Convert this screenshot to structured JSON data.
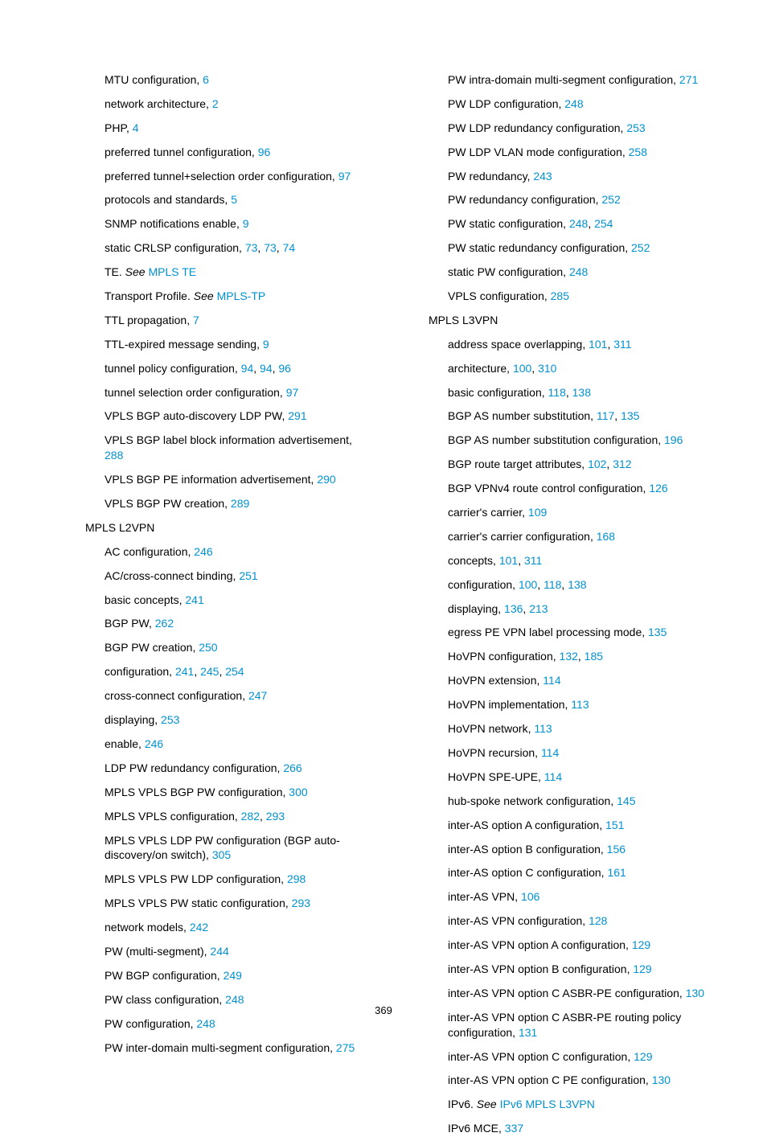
{
  "link_color": "#0091d2",
  "page_number": "369",
  "columns": [
    [
      {
        "lvl": 2,
        "parts": [
          {
            "t": "MTU configuration, "
          },
          {
            "t": "6",
            "p": 1
          }
        ]
      },
      {
        "lvl": 2,
        "parts": [
          {
            "t": "network architecture, "
          },
          {
            "t": "2",
            "p": 1
          }
        ]
      },
      {
        "lvl": 2,
        "parts": [
          {
            "t": "PHP, "
          },
          {
            "t": "4",
            "p": 1
          }
        ]
      },
      {
        "lvl": 2,
        "parts": [
          {
            "t": "preferred tunnel configuration, "
          },
          {
            "t": "96",
            "p": 1
          }
        ]
      },
      {
        "lvl": 2,
        "parts": [
          {
            "t": "preferred tunnel+selection order configuration, "
          },
          {
            "t": "97",
            "p": 1
          }
        ]
      },
      {
        "lvl": 2,
        "parts": [
          {
            "t": "protocols and standards, "
          },
          {
            "t": "5",
            "p": 1
          }
        ]
      },
      {
        "lvl": 2,
        "parts": [
          {
            "t": "SNMP notifications enable, "
          },
          {
            "t": "9",
            "p": 1
          }
        ]
      },
      {
        "lvl": 2,
        "parts": [
          {
            "t": "static CRLSP configuration, "
          },
          {
            "t": "73",
            "p": 1
          },
          {
            "t": ", "
          },
          {
            "t": "73",
            "p": 1
          },
          {
            "t": ", "
          },
          {
            "t": "74",
            "p": 1
          }
        ]
      },
      {
        "lvl": 2,
        "parts": [
          {
            "t": "TE. "
          },
          {
            "t": "See",
            "i": 1
          },
          {
            "t": " "
          },
          {
            "t": "MPLS TE",
            "s": 1
          }
        ]
      },
      {
        "lvl": 2,
        "parts": [
          {
            "t": "Transport Profile. "
          },
          {
            "t": "See",
            "i": 1
          },
          {
            "t": " "
          },
          {
            "t": "MPLS-TP",
            "s": 1
          }
        ]
      },
      {
        "lvl": 2,
        "parts": [
          {
            "t": "TTL propagation, "
          },
          {
            "t": "7",
            "p": 1
          }
        ]
      },
      {
        "lvl": 2,
        "parts": [
          {
            "t": "TTL-expired message sending, "
          },
          {
            "t": "9",
            "p": 1
          }
        ]
      },
      {
        "lvl": 2,
        "parts": [
          {
            "t": "tunnel policy configuration, "
          },
          {
            "t": "94",
            "p": 1
          },
          {
            "t": ", "
          },
          {
            "t": "94",
            "p": 1
          },
          {
            "t": ", "
          },
          {
            "t": "96",
            "p": 1
          }
        ]
      },
      {
        "lvl": 2,
        "parts": [
          {
            "t": "tunnel selection order configuration, "
          },
          {
            "t": "97",
            "p": 1
          }
        ]
      },
      {
        "lvl": 2,
        "parts": [
          {
            "t": "VPLS BGP auto-discovery LDP PW, "
          },
          {
            "t": "291",
            "p": 1
          }
        ]
      },
      {
        "lvl": 2,
        "parts": [
          {
            "t": "VPLS BGP label block information advertisement, "
          },
          {
            "t": "288",
            "p": 1
          }
        ]
      },
      {
        "lvl": 2,
        "parts": [
          {
            "t": "VPLS BGP PE information advertisement, "
          },
          {
            "t": "290",
            "p": 1
          }
        ]
      },
      {
        "lvl": 2,
        "parts": [
          {
            "t": "VPLS BGP PW creation, "
          },
          {
            "t": "289",
            "p": 1
          }
        ]
      },
      {
        "lvl": 1,
        "parts": [
          {
            "t": "MPLS L2VPN"
          }
        ]
      },
      {
        "lvl": 2,
        "parts": [
          {
            "t": "AC configuration, "
          },
          {
            "t": "246",
            "p": 1
          }
        ]
      },
      {
        "lvl": 2,
        "parts": [
          {
            "t": "AC/cross-connect binding, "
          },
          {
            "t": "251",
            "p": 1
          }
        ]
      },
      {
        "lvl": 2,
        "parts": [
          {
            "t": "basic concepts, "
          },
          {
            "t": "241",
            "p": 1
          }
        ]
      },
      {
        "lvl": 2,
        "parts": [
          {
            "t": "BGP PW, "
          },
          {
            "t": "262",
            "p": 1
          }
        ]
      },
      {
        "lvl": 2,
        "parts": [
          {
            "t": "BGP PW creation, "
          },
          {
            "t": "250",
            "p": 1
          }
        ]
      },
      {
        "lvl": 2,
        "parts": [
          {
            "t": "configuration, "
          },
          {
            "t": "241",
            "p": 1
          },
          {
            "t": ", "
          },
          {
            "t": "245",
            "p": 1
          },
          {
            "t": ", "
          },
          {
            "t": "254",
            "p": 1
          }
        ]
      },
      {
        "lvl": 2,
        "parts": [
          {
            "t": "cross-connect configuration, "
          },
          {
            "t": "247",
            "p": 1
          }
        ]
      },
      {
        "lvl": 2,
        "parts": [
          {
            "t": "displaying, "
          },
          {
            "t": "253",
            "p": 1
          }
        ]
      },
      {
        "lvl": 2,
        "parts": [
          {
            "t": "enable, "
          },
          {
            "t": "246",
            "p": 1
          }
        ]
      },
      {
        "lvl": 2,
        "parts": [
          {
            "t": "LDP PW redundancy configuration, "
          },
          {
            "t": "266",
            "p": 1
          }
        ]
      },
      {
        "lvl": 2,
        "parts": [
          {
            "t": "MPLS VPLS BGP PW configuration, "
          },
          {
            "t": "300",
            "p": 1
          }
        ]
      },
      {
        "lvl": 2,
        "parts": [
          {
            "t": "MPLS VPLS configuration, "
          },
          {
            "t": "282",
            "p": 1
          },
          {
            "t": ", "
          },
          {
            "t": "293",
            "p": 1
          }
        ]
      },
      {
        "lvl": 2,
        "parts": [
          {
            "t": "MPLS VPLS LDP PW configuration (BGP auto-discovery/on switch), "
          },
          {
            "t": "305",
            "p": 1
          }
        ]
      },
      {
        "lvl": 2,
        "parts": [
          {
            "t": "MPLS VPLS PW LDP configuration, "
          },
          {
            "t": "298",
            "p": 1
          }
        ]
      },
      {
        "lvl": 2,
        "parts": [
          {
            "t": "MPLS VPLS PW static configuration, "
          },
          {
            "t": "293",
            "p": 1
          }
        ]
      },
      {
        "lvl": 2,
        "parts": [
          {
            "t": "network models, "
          },
          {
            "t": "242",
            "p": 1
          }
        ]
      },
      {
        "lvl": 2,
        "parts": [
          {
            "t": "PW (multi-segment), "
          },
          {
            "t": "244",
            "p": 1
          }
        ]
      },
      {
        "lvl": 2,
        "parts": [
          {
            "t": "PW BGP configuration, "
          },
          {
            "t": "249",
            "p": 1
          }
        ]
      },
      {
        "lvl": 2,
        "parts": [
          {
            "t": "PW class configuration, "
          },
          {
            "t": "248",
            "p": 1
          }
        ]
      },
      {
        "lvl": 2,
        "parts": [
          {
            "t": "PW configuration, "
          },
          {
            "t": "248",
            "p": 1
          }
        ]
      },
      {
        "lvl": 2,
        "parts": [
          {
            "t": "PW inter-domain multi-segment configuration, "
          },
          {
            "t": "275",
            "p": 1
          }
        ]
      }
    ],
    [
      {
        "lvl": 2,
        "parts": [
          {
            "t": "PW intra-domain multi-segment configuration, "
          },
          {
            "t": "271",
            "p": 1
          }
        ]
      },
      {
        "lvl": 2,
        "parts": [
          {
            "t": "PW LDP configuration, "
          },
          {
            "t": "248",
            "p": 1
          }
        ]
      },
      {
        "lvl": 2,
        "parts": [
          {
            "t": "PW LDP redundancy configuration, "
          },
          {
            "t": "253",
            "p": 1
          }
        ]
      },
      {
        "lvl": 2,
        "parts": [
          {
            "t": "PW LDP VLAN mode configuration, "
          },
          {
            "t": "258",
            "p": 1
          }
        ]
      },
      {
        "lvl": 2,
        "parts": [
          {
            "t": "PW redundancy, "
          },
          {
            "t": "243",
            "p": 1
          }
        ]
      },
      {
        "lvl": 2,
        "parts": [
          {
            "t": "PW redundancy configuration, "
          },
          {
            "t": "252",
            "p": 1
          }
        ]
      },
      {
        "lvl": 2,
        "parts": [
          {
            "t": "PW static configuration, "
          },
          {
            "t": "248",
            "p": 1
          },
          {
            "t": ", "
          },
          {
            "t": "254",
            "p": 1
          }
        ]
      },
      {
        "lvl": 2,
        "parts": [
          {
            "t": "PW static redundancy configuration, "
          },
          {
            "t": "252",
            "p": 1
          }
        ]
      },
      {
        "lvl": 2,
        "parts": [
          {
            "t": "static PW configuration, "
          },
          {
            "t": "248",
            "p": 1
          }
        ]
      },
      {
        "lvl": 2,
        "parts": [
          {
            "t": "VPLS configuration, "
          },
          {
            "t": "285",
            "p": 1
          }
        ]
      },
      {
        "lvl": 1,
        "parts": [
          {
            "t": "MPLS L3VPN"
          }
        ]
      },
      {
        "lvl": 2,
        "parts": [
          {
            "t": "address space overlapping, "
          },
          {
            "t": "101",
            "p": 1
          },
          {
            "t": ", "
          },
          {
            "t": "311",
            "p": 1
          }
        ]
      },
      {
        "lvl": 2,
        "parts": [
          {
            "t": "architecture, "
          },
          {
            "t": "100",
            "p": 1
          },
          {
            "t": ", "
          },
          {
            "t": "310",
            "p": 1
          }
        ]
      },
      {
        "lvl": 2,
        "parts": [
          {
            "t": "basic configuration, "
          },
          {
            "t": "118",
            "p": 1
          },
          {
            "t": ", "
          },
          {
            "t": "138",
            "p": 1
          }
        ]
      },
      {
        "lvl": 2,
        "parts": [
          {
            "t": "BGP AS number substitution, "
          },
          {
            "t": "117",
            "p": 1
          },
          {
            "t": ", "
          },
          {
            "t": "135",
            "p": 1
          }
        ]
      },
      {
        "lvl": 2,
        "parts": [
          {
            "t": "BGP AS number substitution configuration, "
          },
          {
            "t": "196",
            "p": 1
          }
        ]
      },
      {
        "lvl": 2,
        "parts": [
          {
            "t": "BGP route target attributes, "
          },
          {
            "t": "102",
            "p": 1
          },
          {
            "t": ", "
          },
          {
            "t": "312",
            "p": 1
          }
        ]
      },
      {
        "lvl": 2,
        "parts": [
          {
            "t": "BGP VPNv4 route control configuration, "
          },
          {
            "t": "126",
            "p": 1
          }
        ]
      },
      {
        "lvl": 2,
        "parts": [
          {
            "t": "carrier's carrier, "
          },
          {
            "t": "109",
            "p": 1
          }
        ]
      },
      {
        "lvl": 2,
        "parts": [
          {
            "t": "carrier's carrier configuration, "
          },
          {
            "t": "168",
            "p": 1
          }
        ]
      },
      {
        "lvl": 2,
        "parts": [
          {
            "t": "concepts, "
          },
          {
            "t": "101",
            "p": 1
          },
          {
            "t": ", "
          },
          {
            "t": "311",
            "p": 1
          }
        ]
      },
      {
        "lvl": 2,
        "parts": [
          {
            "t": "configuration, "
          },
          {
            "t": "100",
            "p": 1
          },
          {
            "t": ", "
          },
          {
            "t": "118",
            "p": 1
          },
          {
            "t": ", "
          },
          {
            "t": "138",
            "p": 1
          }
        ]
      },
      {
        "lvl": 2,
        "parts": [
          {
            "t": "displaying, "
          },
          {
            "t": "136",
            "p": 1
          },
          {
            "t": ", "
          },
          {
            "t": "213",
            "p": 1
          }
        ]
      },
      {
        "lvl": 2,
        "parts": [
          {
            "t": "egress PE VPN label processing mode, "
          },
          {
            "t": "135",
            "p": 1
          }
        ]
      },
      {
        "lvl": 2,
        "parts": [
          {
            "t": "HoVPN configuration, "
          },
          {
            "t": "132",
            "p": 1
          },
          {
            "t": ", "
          },
          {
            "t": "185",
            "p": 1
          }
        ]
      },
      {
        "lvl": 2,
        "parts": [
          {
            "t": "HoVPN extension, "
          },
          {
            "t": "114",
            "p": 1
          }
        ]
      },
      {
        "lvl": 2,
        "parts": [
          {
            "t": "HoVPN implementation, "
          },
          {
            "t": "113",
            "p": 1
          }
        ]
      },
      {
        "lvl": 2,
        "parts": [
          {
            "t": "HoVPN network, "
          },
          {
            "t": "113",
            "p": 1
          }
        ]
      },
      {
        "lvl": 2,
        "parts": [
          {
            "t": "HoVPN recursion, "
          },
          {
            "t": "114",
            "p": 1
          }
        ]
      },
      {
        "lvl": 2,
        "parts": [
          {
            "t": "HoVPN SPE-UPE, "
          },
          {
            "t": "114",
            "p": 1
          }
        ]
      },
      {
        "lvl": 2,
        "parts": [
          {
            "t": "hub-spoke network configuration, "
          },
          {
            "t": "145",
            "p": 1
          }
        ]
      },
      {
        "lvl": 2,
        "parts": [
          {
            "t": "inter-AS option A configuration, "
          },
          {
            "t": "151",
            "p": 1
          }
        ]
      },
      {
        "lvl": 2,
        "parts": [
          {
            "t": "inter-AS option B configuration, "
          },
          {
            "t": "156",
            "p": 1
          }
        ]
      },
      {
        "lvl": 2,
        "parts": [
          {
            "t": "inter-AS option C configuration, "
          },
          {
            "t": "161",
            "p": 1
          }
        ]
      },
      {
        "lvl": 2,
        "parts": [
          {
            "t": "inter-AS VPN, "
          },
          {
            "t": "106",
            "p": 1
          }
        ]
      },
      {
        "lvl": 2,
        "parts": [
          {
            "t": "inter-AS VPN configuration, "
          },
          {
            "t": "128",
            "p": 1
          }
        ]
      },
      {
        "lvl": 2,
        "parts": [
          {
            "t": "inter-AS VPN option A configuration, "
          },
          {
            "t": "129",
            "p": 1
          }
        ]
      },
      {
        "lvl": 2,
        "parts": [
          {
            "t": "inter-AS VPN option B configuration, "
          },
          {
            "t": "129",
            "p": 1
          }
        ]
      },
      {
        "lvl": 2,
        "parts": [
          {
            "t": "inter-AS VPN option C ASBR-PE configuration, "
          },
          {
            "t": "130",
            "p": 1
          }
        ]
      },
      {
        "lvl": 2,
        "parts": [
          {
            "t": "inter-AS VPN option C ASBR-PE routing policy configuration, "
          },
          {
            "t": "131",
            "p": 1
          }
        ]
      },
      {
        "lvl": 2,
        "parts": [
          {
            "t": "inter-AS VPN option C configuration, "
          },
          {
            "t": "129",
            "p": 1
          }
        ]
      },
      {
        "lvl": 2,
        "parts": [
          {
            "t": "inter-AS VPN option C PE configuration, "
          },
          {
            "t": "130",
            "p": 1
          }
        ]
      },
      {
        "lvl": 2,
        "parts": [
          {
            "t": "IPv6. "
          },
          {
            "t": "See",
            "i": 1
          },
          {
            "t": " "
          },
          {
            "t": "IPv6 MPLS L3VPN",
            "s": 1
          }
        ]
      },
      {
        "lvl": 2,
        "parts": [
          {
            "t": "IPv6 MCE, "
          },
          {
            "t": "337",
            "p": 1
          }
        ]
      }
    ]
  ]
}
